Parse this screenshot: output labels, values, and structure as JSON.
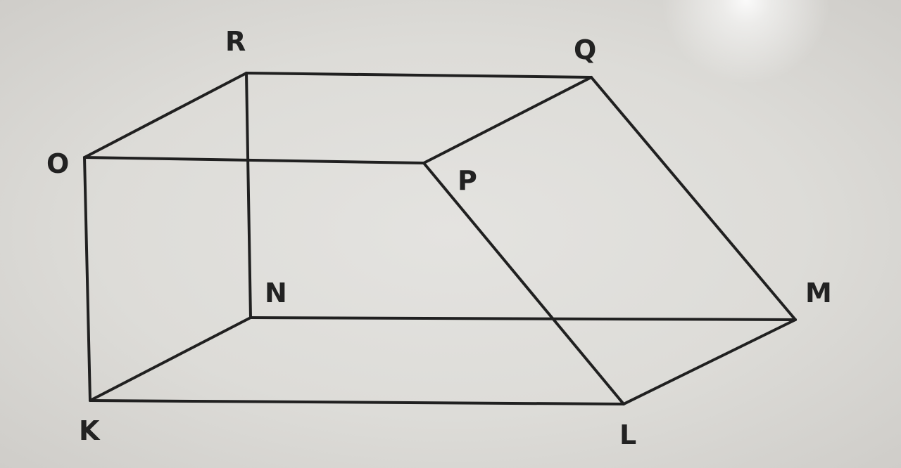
{
  "figure": {
    "vertex_labels": {
      "R": "R",
      "Q": "Q",
      "O": "O",
      "P": "P",
      "N": "N",
      "M": "M",
      "K": "K",
      "L": "L"
    }
  }
}
